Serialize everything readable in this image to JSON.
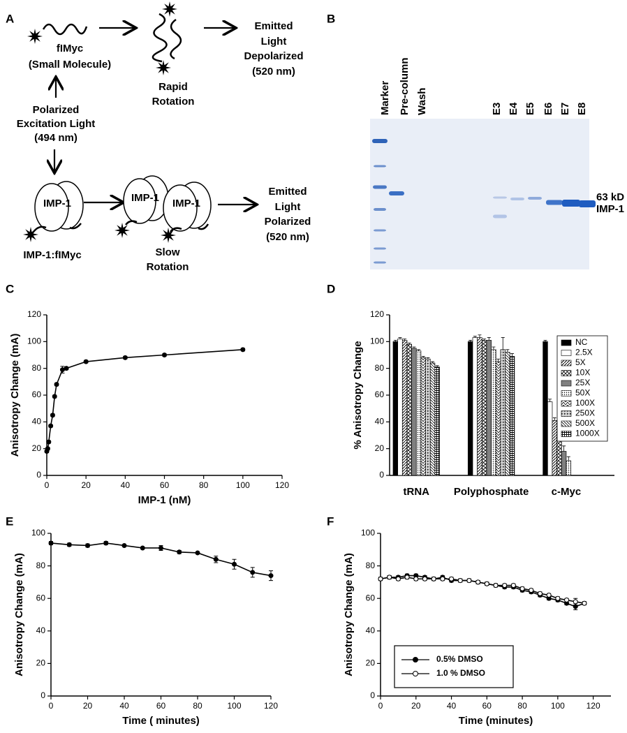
{
  "figure": {
    "panels": [
      "A",
      "B",
      "C",
      "D",
      "E",
      "F"
    ]
  },
  "diagram": {
    "free_probe": [
      "fIMyc",
      "(Small Molecule)"
    ],
    "rapid": [
      "Rapid",
      "Rotation"
    ],
    "emitted_depolarized": [
      "Emitted",
      "Light",
      "Depolarized",
      "(520 nm)"
    ],
    "excitation": [
      "Polarized",
      "Excitation Light",
      "(494 nm)"
    ],
    "protein": "IMP-1",
    "complex": "IMP-1:fIMyc",
    "slow": [
      "Slow",
      "Rotation"
    ],
    "emitted_polarized": [
      "Emitted",
      "Light",
      "Polarized",
      "(520 nm)"
    ]
  },
  "gel": {
    "lanes": [
      "Marker",
      "Pre-column",
      "Wash",
      "E3",
      "E4",
      "E5",
      "E6",
      "E7",
      "E8"
    ],
    "band_labels": [
      "63 kD",
      "IMP-1"
    ]
  },
  "chart_data": [
    {
      "type": "line",
      "xlabel": "IMP-1 (nM)",
      "ylabel": "Anisotropy Change (mA)",
      "x": [
        0,
        0.5,
        1,
        2,
        3,
        4,
        5,
        8,
        10,
        20,
        40,
        60,
        100
      ],
      "values": [
        18,
        20,
        25,
        37,
        45,
        59,
        68,
        79,
        80,
        85,
        88,
        90,
        94
      ],
      "errors": [
        1,
        1,
        1,
        1,
        1,
        1,
        1,
        2.5,
        1,
        1,
        1,
        1,
        1
      ],
      "color": "#000000",
      "marker": "filled",
      "xlim": [
        0,
        120
      ],
      "xticks": [
        0,
        20,
        40,
        60,
        80,
        100,
        120
      ],
      "ylim": [
        0,
        120
      ],
      "yticks": [
        0,
        20,
        40,
        60,
        80,
        100,
        120
      ]
    },
    {
      "type": "bar",
      "ylabel": "% Anisotropy Change",
      "categories": [
        "tRNA",
        "Polyphosphate",
        "c-Myc"
      ],
      "series": [
        {
          "name": "NC",
          "color": "#000000",
          "pattern": "solid",
          "values": [
            100,
            100,
            100
          ],
          "errors": [
            1,
            1,
            1
          ]
        },
        {
          "name": "2.5X",
          "color": "#000000",
          "pattern": "none",
          "values": [
            102,
            103,
            55
          ],
          "errors": [
            1,
            1,
            2
          ]
        },
        {
          "name": "5X",
          "color": "#000000",
          "pattern": "hatch",
          "values": [
            101,
            103,
            41
          ],
          "errors": [
            1,
            2,
            2
          ]
        },
        {
          "name": "10X",
          "color": "#000000",
          "pattern": "cross",
          "values": [
            98,
            101,
            29
          ],
          "errors": [
            1,
            1,
            3
          ]
        },
        {
          "name": "25X",
          "color": "#808080",
          "pattern": "solid",
          "values": [
            95,
            101,
            18
          ],
          "errors": [
            1,
            2,
            4
          ]
        },
        {
          "name": "50X",
          "color": "#000000",
          "pattern": "dots",
          "values": [
            93,
            94,
            11
          ],
          "errors": [
            1,
            2,
            3
          ]
        },
        {
          "name": "100X",
          "color": "#000000",
          "pattern": "zigzag",
          "values": [
            88,
            85,
            0
          ],
          "errors": [
            1,
            2,
            0
          ]
        },
        {
          "name": "250X",
          "color": "#000000",
          "pattern": "speckle",
          "values": [
            87,
            94,
            0
          ],
          "errors": [
            1,
            9,
            0
          ]
        },
        {
          "name": "500X",
          "color": "#000000",
          "pattern": "back",
          "values": [
            84,
            92,
            0
          ],
          "errors": [
            1,
            2,
            0
          ]
        },
        {
          "name": "1000X",
          "color": "#000000",
          "pattern": "grid",
          "values": [
            81,
            89,
            0
          ],
          "errors": [
            1,
            2,
            0
          ]
        }
      ],
      "ylim": [
        0,
        120
      ],
      "yticks": [
        0,
        20,
        40,
        60,
        80,
        100,
        120
      ],
      "legend_loc": "upper right"
    },
    {
      "type": "line",
      "xlabel": "Time ( minutes)",
      "ylabel": "Anisotropy Change (mA)",
      "x": [
        0,
        10,
        20,
        30,
        40,
        50,
        60,
        70,
        80,
        90,
        100,
        110,
        120
      ],
      "values": [
        94,
        93,
        92.5,
        94,
        92.5,
        91,
        91,
        88.5,
        88,
        84,
        81,
        76,
        74
      ],
      "errors": [
        1,
        1,
        1,
        1,
        0.5,
        0.5,
        1.5,
        1,
        0.5,
        2,
        3,
        3,
        3
      ],
      "color": "#000000",
      "marker": "filled",
      "xlim": [
        0,
        120
      ],
      "xticks": [
        0,
        20,
        40,
        60,
        80,
        100,
        120
      ],
      "ylim": [
        0,
        100
      ],
      "yticks": [
        0,
        20,
        40,
        60,
        80,
        100
      ]
    },
    {
      "type": "line",
      "xlabel": "Time (minutes)",
      "ylabel": "Anisotropy Change  (mA)",
      "x": [
        0,
        5,
        10,
        15,
        20,
        25,
        30,
        35,
        40,
        45,
        50,
        55,
        60,
        65,
        70,
        75,
        80,
        85,
        90,
        95,
        100,
        105,
        110,
        115
      ],
      "series": [
        {
          "name": "0.5% DMSO",
          "color": "#000000",
          "marker": "filled",
          "values": [
            72,
            73,
            73,
            74,
            74,
            73,
            72,
            73,
            71,
            71,
            71,
            70,
            69,
            68,
            67,
            67,
            65,
            64,
            62,
            60,
            59,
            57,
            55,
            57
          ],
          "errors": [
            1,
            1,
            1,
            1,
            1,
            1,
            1,
            1,
            1,
            1,
            1,
            1,
            1,
            1,
            1,
            1,
            1,
            1,
            1,
            1,
            1,
            1,
            2,
            1
          ]
        },
        {
          "name": "1.0 % DMSO",
          "color": "#000000",
          "marker": "open",
          "values": [
            72,
            73,
            72,
            73,
            72,
            72,
            72,
            72,
            72,
            71,
            71,
            70,
            69,
            68,
            68,
            68,
            66,
            65,
            63,
            62,
            60,
            59,
            58,
            57
          ],
          "errors": [
            1,
            1,
            1,
            1,
            1,
            1,
            1,
            1,
            1,
            1,
            1,
            1,
            1,
            1,
            1,
            1,
            1,
            1,
            1,
            1,
            1,
            1,
            2,
            1
          ]
        }
      ],
      "xlim": [
        0,
        130
      ],
      "xticks": [
        0,
        20,
        40,
        60,
        80,
        100,
        120
      ],
      "ylim": [
        0,
        100
      ],
      "yticks": [
        0,
        20,
        40,
        60,
        80,
        100
      ],
      "legend_loc": "lower left"
    }
  ]
}
